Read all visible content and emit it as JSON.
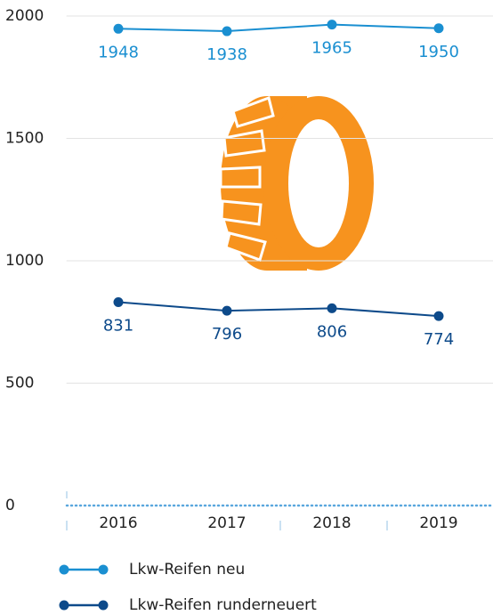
{
  "chart_data": {
    "type": "line",
    "categories": [
      "2016",
      "2017",
      "2018",
      "2019"
    ],
    "series": [
      {
        "name": "Lkw-Reifen neu",
        "color": "#1a8fd1",
        "values": [
          1948,
          1938,
          1965,
          1950
        ]
      },
      {
        "name": "Lkw-Reifen runderneuert",
        "color": "#0d4a8a",
        "values": [
          831,
          796,
          806,
          774
        ]
      }
    ],
    "ylim": [
      0,
      2000
    ],
    "yticks": [
      0,
      500,
      1000,
      1500,
      2000
    ],
    "grid": true
  }
}
